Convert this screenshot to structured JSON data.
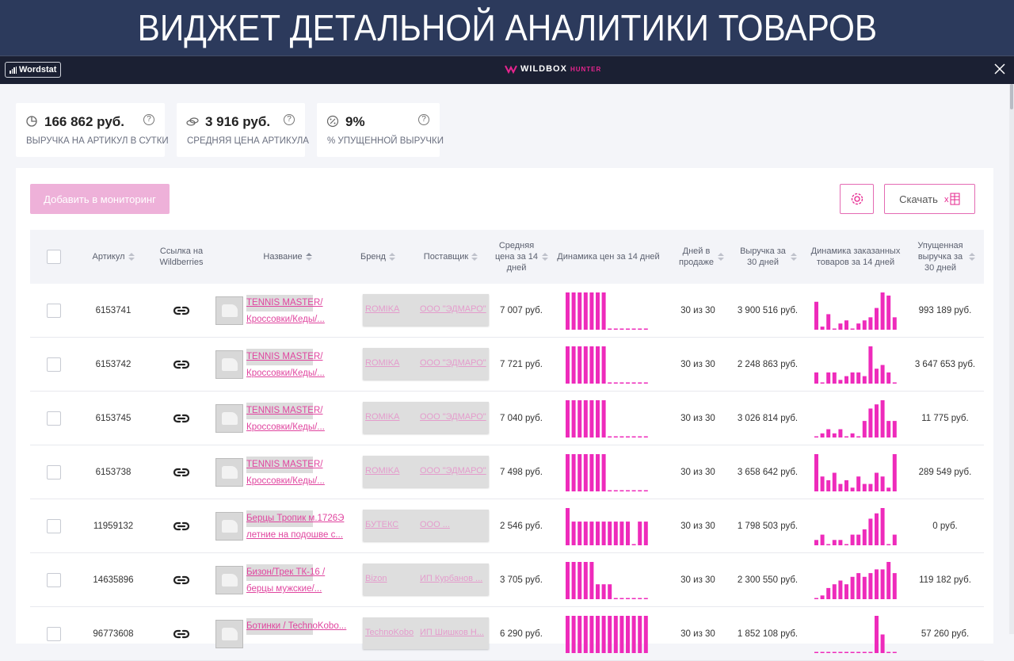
{
  "banner": {
    "title": "ВИДЖЕТ ДЕТАЛЬНОЙ АНАЛИТИКИ ТОВАРОВ"
  },
  "topbar": {
    "wordstat_label": "Wordstat",
    "brand_main": "WILDBOX",
    "brand_sub": "HUNTER"
  },
  "stats": [
    {
      "value": "166 862  руб.",
      "label": "ВЫРУЧКА НА АРТИКУЛ В СУТКИ",
      "icon": "pie-chart-icon"
    },
    {
      "value": "3 916  руб.",
      "label": "СРЕДНЯЯ ЦЕНА АРТИКУЛА",
      "icon": "coins-icon"
    },
    {
      "value": "9%",
      "label": "% УПУЩЕННОЙ ВЫРУЧКИ",
      "icon": "percent-icon"
    }
  ],
  "toolbar": {
    "monitor_label": "Добавить в мониторинг",
    "download_label": "Скачать"
  },
  "columns": {
    "article": "Артикул",
    "link": "Ссылка на Wildberries",
    "name": "Название",
    "brand": "Бренд",
    "supplier": "Поставщик",
    "avg_price": "Средняя цена за 14 дней",
    "price_dyn": "Динамика цен за 14 дней",
    "days": "Дней в продаже",
    "revenue": "Выручка за 30 дней",
    "orders_dyn": "Динамика заказанных товаров за 14 дней",
    "lost": "Упущенная выручка за 30 дней"
  },
  "rows": [
    {
      "article": "6153741",
      "name1": "TENNIS MASTER/",
      "name2": "Кроссовки/Кеды/...",
      "brand": "ROMIKA",
      "supplier": "ООО \"ЭДМАРО\"",
      "avg_price": "7 007 руб.",
      "days": "30 из 30",
      "revenue": "3 900 516 руб.",
      "lost": "993 189 руб.",
      "price_dyn": [
        10,
        10,
        10,
        10,
        10,
        10,
        10,
        0,
        0,
        0,
        0,
        0,
        0,
        0
      ],
      "orders_dyn": [
        9,
        1,
        5,
        0,
        2,
        3,
        0,
        2,
        3,
        4,
        7,
        12,
        11,
        4
      ]
    },
    {
      "article": "6153742",
      "name1": "TENNIS MASTER/",
      "name2": "Кроссовки/Кеды/...",
      "brand": "ROMIKA",
      "supplier": "ООО \"ЭДМАРО\"",
      "avg_price": "7 721 руб.",
      "days": "30 из 30",
      "revenue": "2 248 863 руб.",
      "lost": "3 647 653 руб.",
      "price_dyn": [
        10,
        10,
        10,
        10,
        10,
        10,
        10,
        0,
        0,
        0,
        0,
        0,
        0,
        0
      ],
      "orders_dyn": [
        3,
        0,
        3,
        3,
        1,
        2,
        3,
        3,
        2,
        10,
        4,
        5,
        3,
        0
      ]
    },
    {
      "article": "6153745",
      "name1": "TENNIS MASTER/",
      "name2": "Кроссовки/Кеды/...",
      "brand": "ROMIKA",
      "supplier": "ООО \"ЭДМАРО\"",
      "avg_price": "7 040 руб.",
      "days": "30 из 30",
      "revenue": "3 026 814 руб.",
      "lost": "11 775 руб.",
      "price_dyn": [
        10,
        10,
        10,
        10,
        10,
        10,
        10,
        0,
        0,
        0,
        0,
        0,
        0,
        0
      ],
      "orders_dyn": [
        0,
        1,
        2,
        1,
        2,
        0,
        1,
        0,
        4,
        7,
        8,
        9,
        4,
        4
      ]
    },
    {
      "article": "6153738",
      "name1": "TENNIS MASTER/",
      "name2": "Кроссовки/Кеды/...",
      "brand": "ROMIKA",
      "supplier": "ООО \"ЭДМАРО\"",
      "avg_price": "7 498 руб.",
      "days": "30 из 30",
      "revenue": "3 658 642 руб.",
      "lost": "289 549 руб.",
      "price_dyn": [
        10,
        10,
        10,
        10,
        10,
        10,
        10,
        0,
        0,
        0,
        0,
        0,
        0,
        0
      ],
      "orders_dyn": [
        10,
        4,
        3,
        5,
        2,
        3,
        1,
        4,
        2,
        2,
        5,
        4,
        1,
        10
      ]
    },
    {
      "article": "11959132",
      "name1": "Берцы Тропик м.1726Э",
      "name2": "летние на подошве с...",
      "brand": "БУТЕКС",
      "supplier": "ООО ...",
      "avg_price": "2 546 руб.",
      "days": "30 из 30",
      "revenue": "1 798 503 руб.",
      "lost": "0 руб.",
      "price_dyn": [
        11,
        7,
        7,
        7,
        7,
        7,
        7,
        7,
        7,
        7,
        7,
        0,
        7,
        7
      ],
      "orders_dyn": [
        1,
        2,
        0,
        1,
        1,
        0,
        2,
        2,
        3,
        5,
        6,
        7,
        0,
        2
      ]
    },
    {
      "article": "14635896",
      "name1": "Бизон/Трек ТК-16 /",
      "name2": "берцы мужские/...",
      "brand": "Bizon",
      "supplier": "ИП Курбанов ...",
      "avg_price": "3 705 руб.",
      "days": "30 из 30",
      "revenue": "2 300 550 руб.",
      "lost": "119 182 руб.",
      "price_dyn": [
        10,
        10,
        10,
        10,
        10,
        4,
        4,
        4,
        0,
        0,
        0,
        0,
        0,
        0
      ],
      "orders_dyn": [
        0,
        1,
        3,
        4,
        5,
        4,
        6,
        7,
        6,
        7,
        8,
        8,
        10,
        7
      ]
    },
    {
      "article": "96773608",
      "name1": "Ботинки / TechnoKobo...",
      "name2": "",
      "brand": "TechnoKobo",
      "supplier": "ИП Шишков Н...",
      "avg_price": "6 290 руб.",
      "days": "30 из 30",
      "revenue": "1 852 108 руб.",
      "lost": "57 260 руб.",
      "price_dyn": [
        8,
        8,
        8,
        8,
        8,
        8,
        8,
        8,
        8,
        8,
        8,
        8,
        8,
        8
      ],
      "orders_dyn": [
        0,
        0,
        0,
        0,
        0,
        0,
        0,
        0,
        0,
        0,
        8,
        4,
        0,
        0
      ]
    }
  ],
  "colors": {
    "accent": "#e6248e",
    "bar": "#ee2bbb",
    "banner": "#2c3a5c",
    "topbar": "#1b2033"
  }
}
